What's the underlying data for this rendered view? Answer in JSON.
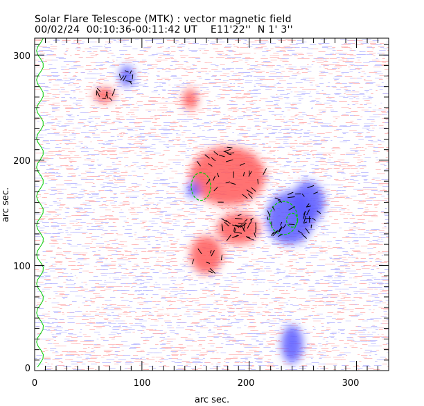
{
  "chart_data": {
    "type": "heatmap",
    "title": "Solar Flare Telescope (MTK) : vector magnetic field",
    "subtitle": "00/02/24  00:10:36-00:11:42 UT    E11'22''  N 1' 3''",
    "xlabel": "arc sec.",
    "ylabel": "arc sec.",
    "xlim": [
      0,
      330
    ],
    "ylim": [
      0,
      316
    ],
    "xticks": [
      "0",
      "100",
      "200",
      "300"
    ],
    "yticks": [
      "0",
      "100",
      "200",
      "300"
    ],
    "colors": {
      "positive": "#ff5a5a",
      "negative": "#5a5aff",
      "vector": "#000000",
      "contour": "#00cc00"
    },
    "regions": [
      {
        "polarity": "positive",
        "x": 180,
        "y": 185,
        "rx": 35,
        "ry": 28
      },
      {
        "polarity": "positive",
        "x": 190,
        "y": 135,
        "rx": 20,
        "ry": 15
      },
      {
        "polarity": "positive",
        "x": 160,
        "y": 110,
        "rx": 15,
        "ry": 18
      },
      {
        "polarity": "positive",
        "x": 145,
        "y": 258,
        "rx": 7,
        "ry": 10
      },
      {
        "polarity": "positive",
        "x": 65,
        "y": 262,
        "rx": 10,
        "ry": 7
      },
      {
        "polarity": "negative",
        "x": 238,
        "y": 145,
        "rx": 22,
        "ry": 25
      },
      {
        "polarity": "negative",
        "x": 255,
        "y": 160,
        "rx": 15,
        "ry": 20
      },
      {
        "polarity": "negative",
        "x": 86,
        "y": 280,
        "rx": 7,
        "ry": 10
      },
      {
        "polarity": "negative",
        "x": 240,
        "y": 25,
        "rx": 10,
        "ry": 18
      },
      {
        "polarity": "negative",
        "x": 148,
        "y": 172,
        "rx": 6,
        "ry": 8
      }
    ]
  }
}
